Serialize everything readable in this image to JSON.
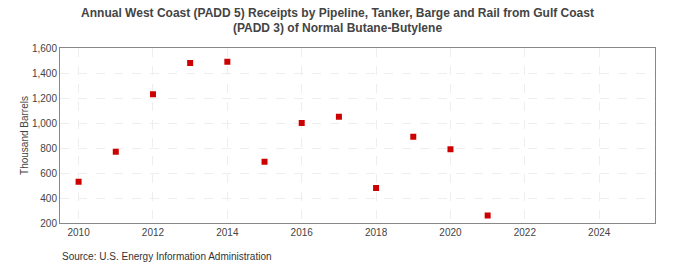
{
  "chart_data": {
    "type": "scatter",
    "title": "Annual West Coast (PADD 5) Receipts by Pipeline, Tanker, Barge and Rail from Gulf Coast\n(PADD 3) of Normal Butane-Butylene",
    "ylabel": "Thousand Barrels",
    "annotations": [
      "Source: U.S. Energy Information Administration"
    ],
    "x": [
      2010,
      2011,
      2012,
      2013,
      2014,
      2015,
      2016,
      2017,
      2018,
      2019,
      2020,
      2021
    ],
    "values": [
      530,
      770,
      1230,
      1480,
      1490,
      690,
      1000,
      1050,
      480,
      890,
      790,
      260
    ],
    "color": "#cc0000",
    "marker": "square",
    "xlim": [
      2009.5,
      2025.5
    ],
    "xticks": [
      2010,
      2012,
      2014,
      2016,
      2018,
      2020,
      2022,
      2024
    ],
    "ylim": [
      200,
      1600
    ],
    "yticks": [
      200,
      400,
      600,
      800,
      {
        "value": 1000,
        "label": "1,000"
      },
      {
        "value": 1200,
        "label": "1,200"
      },
      {
        "value": 1400,
        "label": "1,400"
      },
      {
        "value": 1600,
        "label": "1,600"
      }
    ],
    "grid": true
  }
}
